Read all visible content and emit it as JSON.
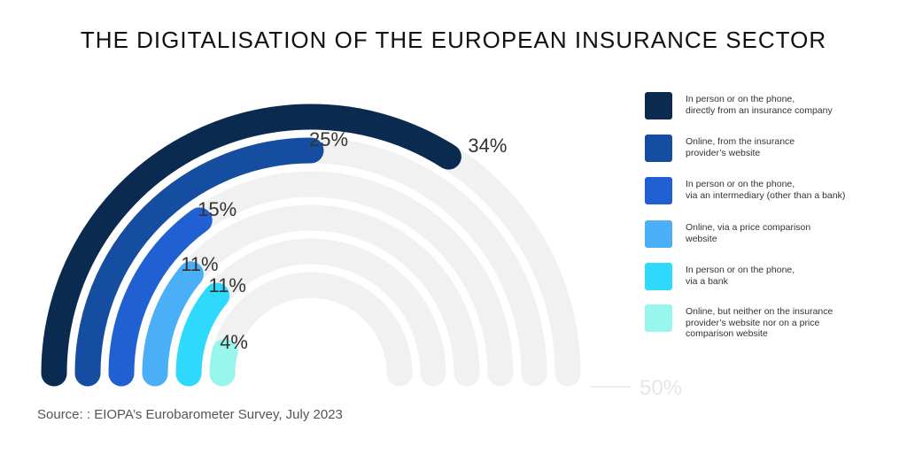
{
  "title": "THE DIGITALISATION OF THE EUROPEAN INSURANCE SECTOR",
  "source": "Source: : EIOPA’s Eurobarometer Survey, July 2023",
  "chart_data": {
    "type": "radial-bar",
    "title": "THE DIGITALISATION OF THE EUROPEAN INSURANCE SECTOR",
    "max_value": 50,
    "max_label": "50%",
    "track_color": "#f1f1f1",
    "label_color": "#333333",
    "series": [
      {
        "name": "In person or on the phone, directly from an insurance company",
        "value": 34,
        "label": "34%",
        "color": "#0b2a4f"
      },
      {
        "name": "Online, from the insurance provider’s website",
        "value": 25,
        "label": "25%",
        "color": "#154da0"
      },
      {
        "name": "In person or on the phone, via an intermediary (other than a bank)",
        "value": 15,
        "label": "15%",
        "color": "#2160d3"
      },
      {
        "name": "Online, via a price comparison website",
        "value": 11,
        "label": "11%",
        "color": "#4aaff7"
      },
      {
        "name": "In person or on the phone, via a bank",
        "value": 11,
        "label": "11%",
        "color": "#2fd9fb"
      },
      {
        "name": "Online, but neither on the insurance provider’s website nor on a price comparison website",
        "value": 4,
        "label": "4%",
        "color": "#98f6ef"
      }
    ]
  },
  "legend": [
    {
      "line1": "In person or on the phone,",
      "line2": "directly from an insurance company",
      "line3": ""
    },
    {
      "line1": "Online, from the insurance",
      "line2": "provider’s website",
      "line3": ""
    },
    {
      "line1": "In person or on the phone,",
      "line2": "via an intermediary (other than a bank)",
      "line3": ""
    },
    {
      "line1": "Online, via a price comparison",
      "line2": "website",
      "line3": ""
    },
    {
      "line1": "In person or on the phone,",
      "line2": "via a bank",
      "line3": ""
    },
    {
      "line1": "Online, but neither on the insurance",
      "line2": "provider’s website nor on a price",
      "line3": "comparison website"
    }
  ]
}
